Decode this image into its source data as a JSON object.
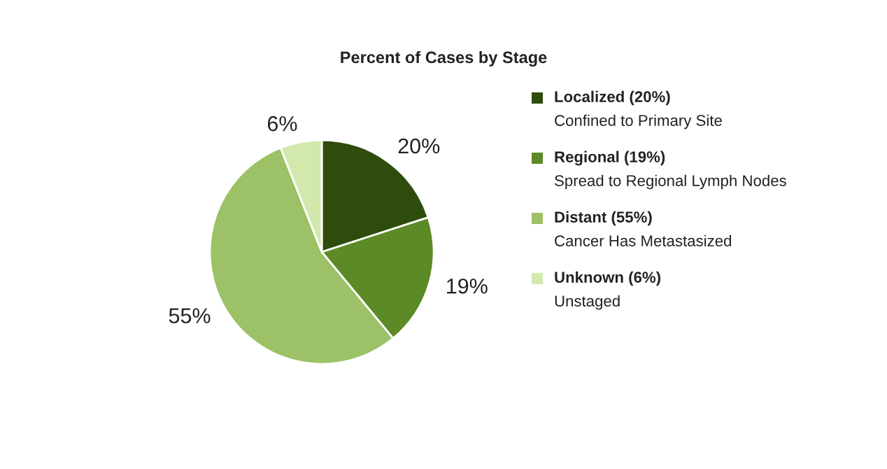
{
  "chart_data": {
    "type": "pie",
    "title": "Percent of Cases by Stage",
    "categories": [
      "Localized (20%)",
      "Regional (19%)",
      "Distant (55%)",
      "Unknown (6%)"
    ],
    "values": [
      20,
      19,
      55,
      6
    ],
    "colors": [
      "#2e4d0c",
      "#5b8a26",
      "#9cc166",
      "#d3e8ad"
    ],
    "value_labels": [
      "20%",
      "19%",
      "55%",
      "6%"
    ],
    "legend": "right",
    "annotations": [
      "Confined to Primary Site",
      "Spread to Regional Lymph Nodes",
      "Cancer Has Metastasized",
      "Unstaged"
    ]
  }
}
